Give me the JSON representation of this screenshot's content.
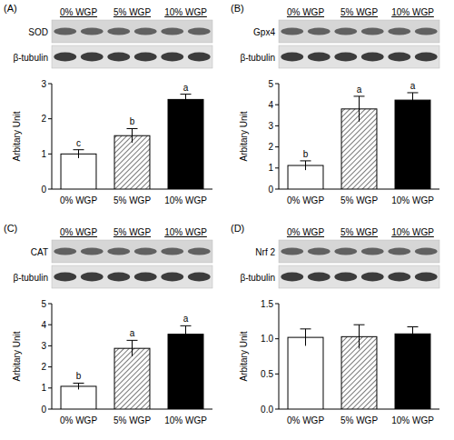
{
  "chart_data": [
    {
      "type": "bar",
      "title": "(A)",
      "blot_labels": [
        "SOD",
        "β-tubulin"
      ],
      "categories": [
        "0% WGP",
        "5% WGP",
        "10% WGP"
      ],
      "values": [
        1.0,
        1.52,
        2.55
      ],
      "errors": [
        0.12,
        0.2,
        0.15
      ],
      "letters": [
        "c",
        "b",
        "a"
      ],
      "colors": [
        "#ffffff",
        "#555555",
        "#000000"
      ],
      "y_label": "Arbitary Unit",
      "ylim": [
        0,
        3
      ],
      "yticks": [
        0,
        1,
        2,
        3
      ]
    },
    {
      "type": "bar",
      "title": "(B)",
      "blot_labels": [
        "Gpx4",
        "β-tubulin"
      ],
      "categories": [
        "0% WGP",
        "5% WGP",
        "10% WGP"
      ],
      "values": [
        1.12,
        3.8,
        4.22
      ],
      "errors": [
        0.22,
        0.6,
        0.35
      ],
      "letters": [
        "b",
        "a",
        "a"
      ],
      "colors": [
        "#ffffff",
        "#555555",
        "#000000"
      ],
      "y_label": "Arbitary Unit",
      "ylim": [
        0,
        5
      ],
      "yticks": [
        0,
        1,
        2,
        3,
        4,
        5
      ]
    },
    {
      "type": "bar",
      "title": "(C)",
      "blot_labels": [
        "CAT",
        "β-tubulin"
      ],
      "categories": [
        "0% WGP",
        "5% WGP",
        "10% WGP"
      ],
      "values": [
        1.08,
        2.88,
        3.55
      ],
      "errors": [
        0.15,
        0.38,
        0.4
      ],
      "letters": [
        "b",
        "a",
        "a"
      ],
      "colors": [
        "#ffffff",
        "#555555",
        "#000000"
      ],
      "y_label": "Arbitary Unit",
      "ylim": [
        0,
        5
      ],
      "yticks": [
        0,
        1,
        2,
        3,
        4,
        5
      ]
    },
    {
      "type": "bar",
      "title": "(D)",
      "blot_labels": [
        "Nrf 2",
        "β-tubulin"
      ],
      "categories": [
        "0% WGP",
        "5% WGP",
        "10% WGP"
      ],
      "values": [
        1.02,
        1.03,
        1.07
      ],
      "errors": [
        0.12,
        0.17,
        0.1
      ],
      "colors": [
        "#ffffff",
        "#555555",
        "#000000"
      ],
      "y_label": "Arbitary Unit",
      "ylim": [
        0,
        1.5
      ],
      "yticks": [
        {
          "value": 0,
          "label": "0.0"
        },
        {
          "value": 0.5,
          "label": "0.5"
        },
        {
          "value": 1,
          "label": "1.0"
        },
        {
          "value": 1.5,
          "label": "1.5"
        }
      ]
    }
  ]
}
